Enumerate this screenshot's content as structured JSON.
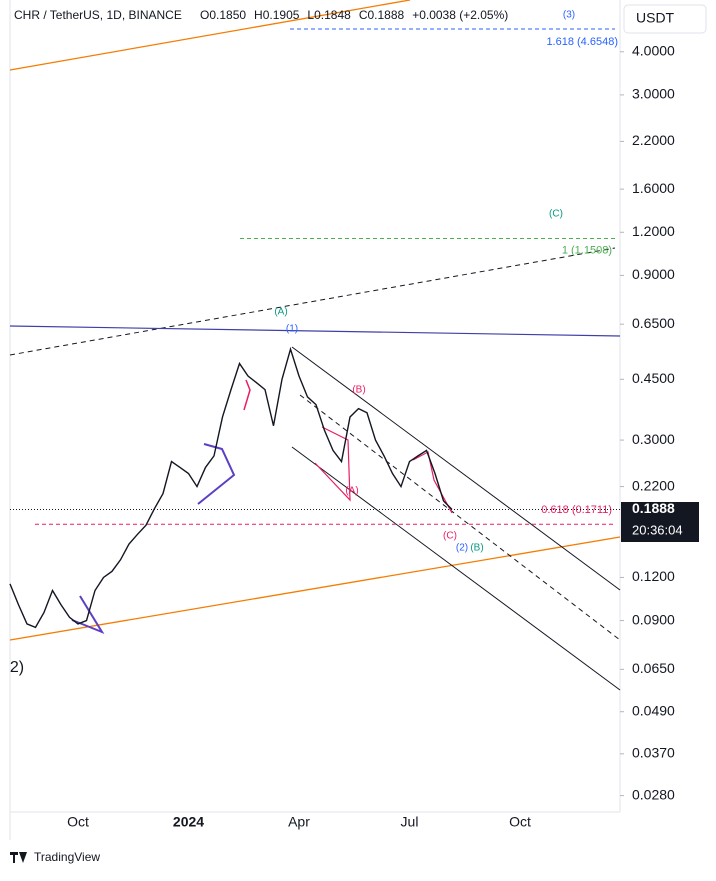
{
  "chart_data": {
    "type": "line",
    "header": "CHR / TetherUS, 1D, BINANCE",
    "ohlc": [
      "O0.1850",
      "H0.1905",
      "L0.1848",
      "C0.1888",
      "+0.0038 (+2.05%)"
    ],
    "currency": "USDT",
    "countdown": "20:36:04",
    "brand": "TradingView",
    "log_scale": true,
    "ylim": [
      0.0251,
      5.65
    ],
    "yticks": [
      {
        "value": 4,
        "label": "4.0000"
      },
      {
        "value": 3,
        "label": "3.0000"
      },
      {
        "value": 2.2,
        "label": "2.2000"
      },
      {
        "value": 1.6,
        "label": "1.6000"
      },
      {
        "value": 1.2,
        "label": "1.2000"
      },
      {
        "value": 0.9,
        "label": "0.9000"
      },
      {
        "value": 0.65,
        "label": "0.6500"
      },
      {
        "value": 0.45,
        "label": "0.4500"
      },
      {
        "value": 0.3,
        "label": "0.3000"
      },
      {
        "value": 0.22,
        "label": "0.2200"
      },
      {
        "value": 0.12,
        "label": "0.1200"
      },
      {
        "value": 0.09,
        "label": "0.0900"
      },
      {
        "value": 0.065,
        "label": "0.0650"
      },
      {
        "value": 0.049,
        "label": "0.0490"
      },
      {
        "value": 0.037,
        "label": "0.0370"
      },
      {
        "value": 0.028,
        "label": "0.0280"
      }
    ],
    "last_price": 0.1888,
    "categories": [
      null,
      null,
      null,
      null,
      null,
      null,
      null,
      null,
      "Oct",
      null,
      null,
      null,
      null,
      null,
      null,
      null,
      null,
      null,
      null,
      null,
      null,
      "2024",
      null,
      null,
      null,
      null,
      null,
      null,
      null,
      null,
      null,
      null,
      null,
      null,
      "Apr",
      null,
      null,
      null,
      null,
      null,
      null,
      null,
      null,
      null,
      null,
      null,
      null,
      "Jul",
      null,
      null,
      null,
      null,
      null,
      null,
      null,
      null,
      null,
      null,
      null,
      null,
      "Oct",
      null,
      null,
      null,
      null,
      null,
      null,
      null,
      null,
      null,
      null,
      null
    ],
    "series": [
      {
        "name": "CHR",
        "color": "#131722",
        "values": [
          0.115,
          0.1,
          0.088,
          0.086,
          0.095,
          0.11,
          0.1,
          0.092,
          0.088,
          0.09,
          0.11,
          0.12,
          0.125,
          0.135,
          0.15,
          0.16,
          0.17,
          0.19,
          0.21,
          0.26,
          0.25,
          0.24,
          0.22,
          0.25,
          0.27,
          0.35,
          0.42,
          0.5,
          0.46,
          0.44,
          0.42,
          0.33,
          0.45,
          0.55,
          0.46,
          0.4,
          0.38,
          0.32,
          0.28,
          0.26,
          0.35,
          0.37,
          0.36,
          0.3,
          0.27,
          0.24,
          0.22,
          0.26,
          0.27,
          0.28,
          0.24,
          0.2,
          0.1888,
          null,
          null,
          null,
          null,
          null,
          null,
          null,
          null,
          null,
          null,
          null,
          null,
          null,
          null,
          null,
          null,
          null,
          null,
          null
        ]
      }
    ],
    "levels": [
      {
        "value": 4.6548,
        "label": "1.618 (4.6548)",
        "color": "#2962ff"
      },
      {
        "value": 1.1508,
        "label": "1 (1.1508)",
        "color": "#4caf50"
      },
      {
        "value": 0.1711,
        "label": "0.618 (0.1711)",
        "color": "#e91e63"
      }
    ],
    "annotations": [
      "(3)",
      "(C)",
      "(A)",
      "(1)",
      "(B)",
      "(A)",
      "(C)",
      "(2)",
      "(B)",
      "2)"
    ]
  }
}
